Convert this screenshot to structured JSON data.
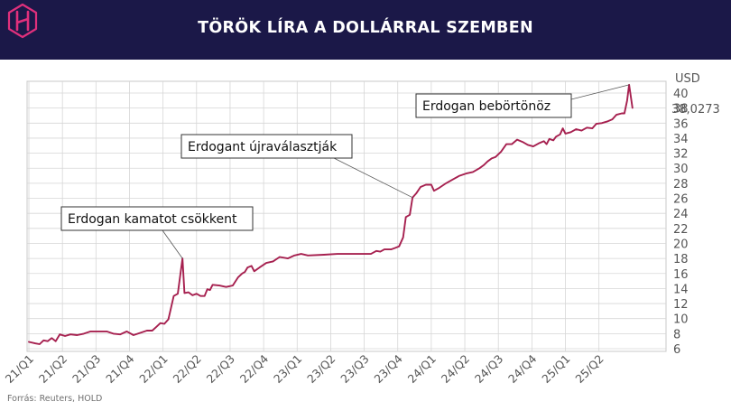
{
  "header": {
    "title": "TÖRÖK LÍRA A DOLLÁRRAL SZEMBEN",
    "logo_color": "#e0307c",
    "background": "#1b1848"
  },
  "source": "Forrás: Reuters, HOLD",
  "chart_data": {
    "type": "line",
    "title": "TÖRÖK LÍRA A DOLLÁRRAL SZEMBEN",
    "ylabel": "USD",
    "ylim": [
      6,
      42
    ],
    "y_ticks": [
      6,
      8,
      10,
      12,
      14,
      16,
      18,
      20,
      22,
      24,
      26,
      28,
      30,
      32,
      34,
      36,
      38,
      40
    ],
    "y_axis_side": "right",
    "last_value_label": "38,0273",
    "grid": true,
    "line_color": "#a6204f",
    "x_ticks": [
      "21/Q1",
      "21/Q2",
      "21/Q3",
      "21/Q4",
      "22/Q1",
      "22/Q2",
      "22/Q3",
      "22/Q4",
      "23/Q1",
      "23/Q2",
      "23/Q3",
      "23/Q4",
      "24/Q1",
      "24/Q2",
      "24/Q3",
      "24/Q4",
      "25/Q1",
      "25/Q2"
    ],
    "series": [
      {
        "values": [
          [
            2021.0,
            6.9
          ],
          [
            2021.05,
            6.7
          ],
          [
            2021.08,
            6.6
          ],
          [
            2021.11,
            7.1
          ],
          [
            2021.14,
            7.0
          ],
          [
            2021.17,
            7.4
          ],
          [
            2021.2,
            7.0
          ],
          [
            2021.23,
            7.9
          ],
          [
            2021.27,
            7.7
          ],
          [
            2021.31,
            7.9
          ],
          [
            2021.36,
            7.8
          ],
          [
            2021.41,
            8.0
          ],
          [
            2021.46,
            8.3
          ],
          [
            2021.52,
            8.3
          ],
          [
            2021.58,
            8.3
          ],
          [
            2021.63,
            8.0
          ],
          [
            2021.68,
            7.9
          ],
          [
            2021.73,
            8.3
          ],
          [
            2021.78,
            7.8
          ],
          [
            2021.83,
            8.1
          ],
          [
            2021.88,
            8.4
          ],
          [
            2021.92,
            8.4
          ],
          [
            2021.95,
            8.9
          ],
          [
            2021.98,
            9.4
          ],
          [
            2022.01,
            9.3
          ],
          [
            2022.04,
            9.9
          ],
          [
            2022.08,
            13.0
          ],
          [
            2022.11,
            13.3
          ],
          [
            2022.145,
            18.0
          ],
          [
            2022.16,
            13.4
          ],
          [
            2022.19,
            13.5
          ],
          [
            2022.22,
            13.1
          ],
          [
            2022.25,
            13.3
          ],
          [
            2022.28,
            13.0
          ],
          [
            2022.31,
            13.0
          ],
          [
            2022.33,
            13.9
          ],
          [
            2022.35,
            13.8
          ],
          [
            2022.37,
            14.5
          ],
          [
            2022.42,
            14.4
          ],
          [
            2022.47,
            14.2
          ],
          [
            2022.52,
            14.4
          ],
          [
            2022.56,
            15.5
          ],
          [
            2022.59,
            16.0
          ],
          [
            2022.61,
            16.2
          ],
          [
            2022.63,
            16.8
          ],
          [
            2022.66,
            17.0
          ],
          [
            2022.68,
            16.3
          ],
          [
            2022.72,
            16.8
          ],
          [
            2022.77,
            17.4
          ],
          [
            2022.82,
            17.6
          ],
          [
            2022.87,
            18.2
          ],
          [
            2022.93,
            18.0
          ],
          [
            2022.98,
            18.4
          ],
          [
            2023.03,
            18.6
          ],
          [
            2023.08,
            18.4
          ],
          [
            2023.2,
            18.5
          ],
          [
            2023.3,
            18.6
          ],
          [
            2023.42,
            18.6
          ],
          [
            2023.55,
            18.6
          ],
          [
            2023.59,
            19.0
          ],
          [
            2023.62,
            18.9
          ],
          [
            2023.65,
            19.2
          ],
          [
            2023.7,
            19.2
          ],
          [
            2023.73,
            19.4
          ],
          [
            2023.76,
            19.6
          ],
          [
            2023.79,
            20.8
          ],
          [
            2023.81,
            23.5
          ],
          [
            2023.84,
            23.8
          ],
          [
            2023.86,
            26.1
          ],
          [
            2023.89,
            26.7
          ],
          [
            2023.92,
            27.5
          ],
          [
            2023.96,
            27.8
          ],
          [
            2024.0,
            27.8
          ],
          [
            2024.02,
            27.0
          ],
          [
            2024.06,
            27.4
          ],
          [
            2024.11,
            28.0
          ],
          [
            2024.16,
            28.5
          ],
          [
            2024.21,
            29.0
          ],
          [
            2024.26,
            29.3
          ],
          [
            2024.31,
            29.5
          ],
          [
            2024.36,
            30.0
          ],
          [
            2024.39,
            30.4
          ],
          [
            2024.42,
            30.9
          ],
          [
            2024.45,
            31.3
          ],
          [
            2024.48,
            31.5
          ],
          [
            2024.52,
            32.2
          ],
          [
            2024.56,
            33.2
          ],
          [
            2024.6,
            33.2
          ],
          [
            2024.64,
            33.8
          ],
          [
            2024.68,
            33.5
          ],
          [
            2024.72,
            33.1
          ],
          [
            2024.76,
            32.9
          ],
          [
            2024.8,
            33.3
          ],
          [
            2024.84,
            33.6
          ],
          [
            2024.86,
            33.2
          ],
          [
            2024.88,
            33.9
          ],
          [
            2024.91,
            33.7
          ],
          [
            2024.93,
            34.2
          ],
          [
            2024.96,
            34.5
          ],
          [
            2024.98,
            35.3
          ],
          [
            2025.0,
            34.6
          ],
          [
            2025.04,
            34.8
          ],
          [
            2025.08,
            35.2
          ],
          [
            2025.12,
            35.0
          ],
          [
            2025.16,
            35.4
          ],
          [
            2025.2,
            35.3
          ],
          [
            2025.23,
            35.9
          ],
          [
            2025.27,
            36.0
          ],
          [
            2025.31,
            36.2
          ],
          [
            2025.35,
            36.5
          ],
          [
            2025.38,
            37.1
          ],
          [
            2025.42,
            37.3
          ],
          [
            2025.44,
            37.3
          ],
          [
            2025.46,
            39.0
          ],
          [
            2025.475,
            41.1
          ],
          [
            2025.5,
            38.0273
          ]
        ]
      }
    ],
    "annotations": [
      {
        "text": "Erdogan kamatot csökkent",
        "x": 2022.145,
        "y": 18.0
      },
      {
        "text": "Erdogant újraválasztják",
        "x": 2023.86,
        "y": 26.1
      },
      {
        "text": "Erdogan bebörtönöz",
        "x": 2025.475,
        "y": 41.1
      }
    ]
  }
}
